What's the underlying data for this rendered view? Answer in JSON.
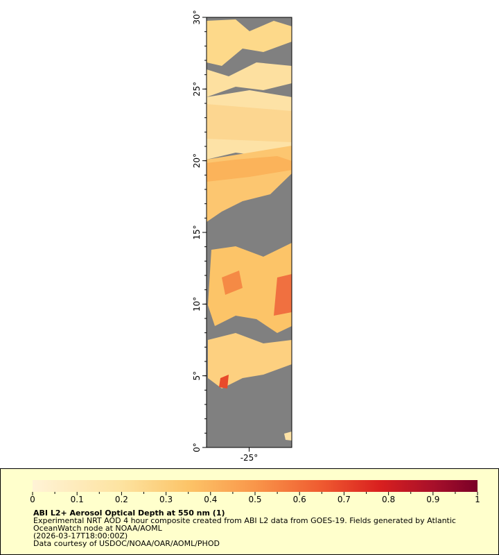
{
  "map": {
    "xlim": [
      -28,
      -22
    ],
    "ylim": [
      0,
      30
    ],
    "yticks": [
      {
        "value": 0,
        "label": "0°"
      },
      {
        "value": 5,
        "label": "5°"
      },
      {
        "value": 10,
        "label": "10°"
      },
      {
        "value": 15,
        "label": "15°"
      },
      {
        "value": 20,
        "label": "20°"
      },
      {
        "value": 25,
        "label": "25°"
      },
      {
        "value": 30,
        "label": "30°"
      }
    ],
    "xticks": [
      {
        "value": -25,
        "label": "-25°"
      }
    ]
  },
  "colorbar": {
    "range": [
      0,
      1
    ],
    "ticks": [
      0,
      0.1,
      0.2,
      0.3,
      0.4,
      0.5,
      0.6,
      0.7,
      0.8,
      0.9,
      1
    ]
  },
  "legend": {
    "title": "ABI L2+ Aerosol Optical Depth at 550 nm (1)",
    "lines": [
      "Experimental NRT AOD 4 hour composite created from ABI L2 data from GOES-19. Fields generated by Atlantic",
      "OceanWatch node at NOAA/AOML",
      "(2026-03-17T18:00:00Z)",
      "Data courtesy of USDOC/NOAA/OAR/AOML/PHOD"
    ]
  }
}
